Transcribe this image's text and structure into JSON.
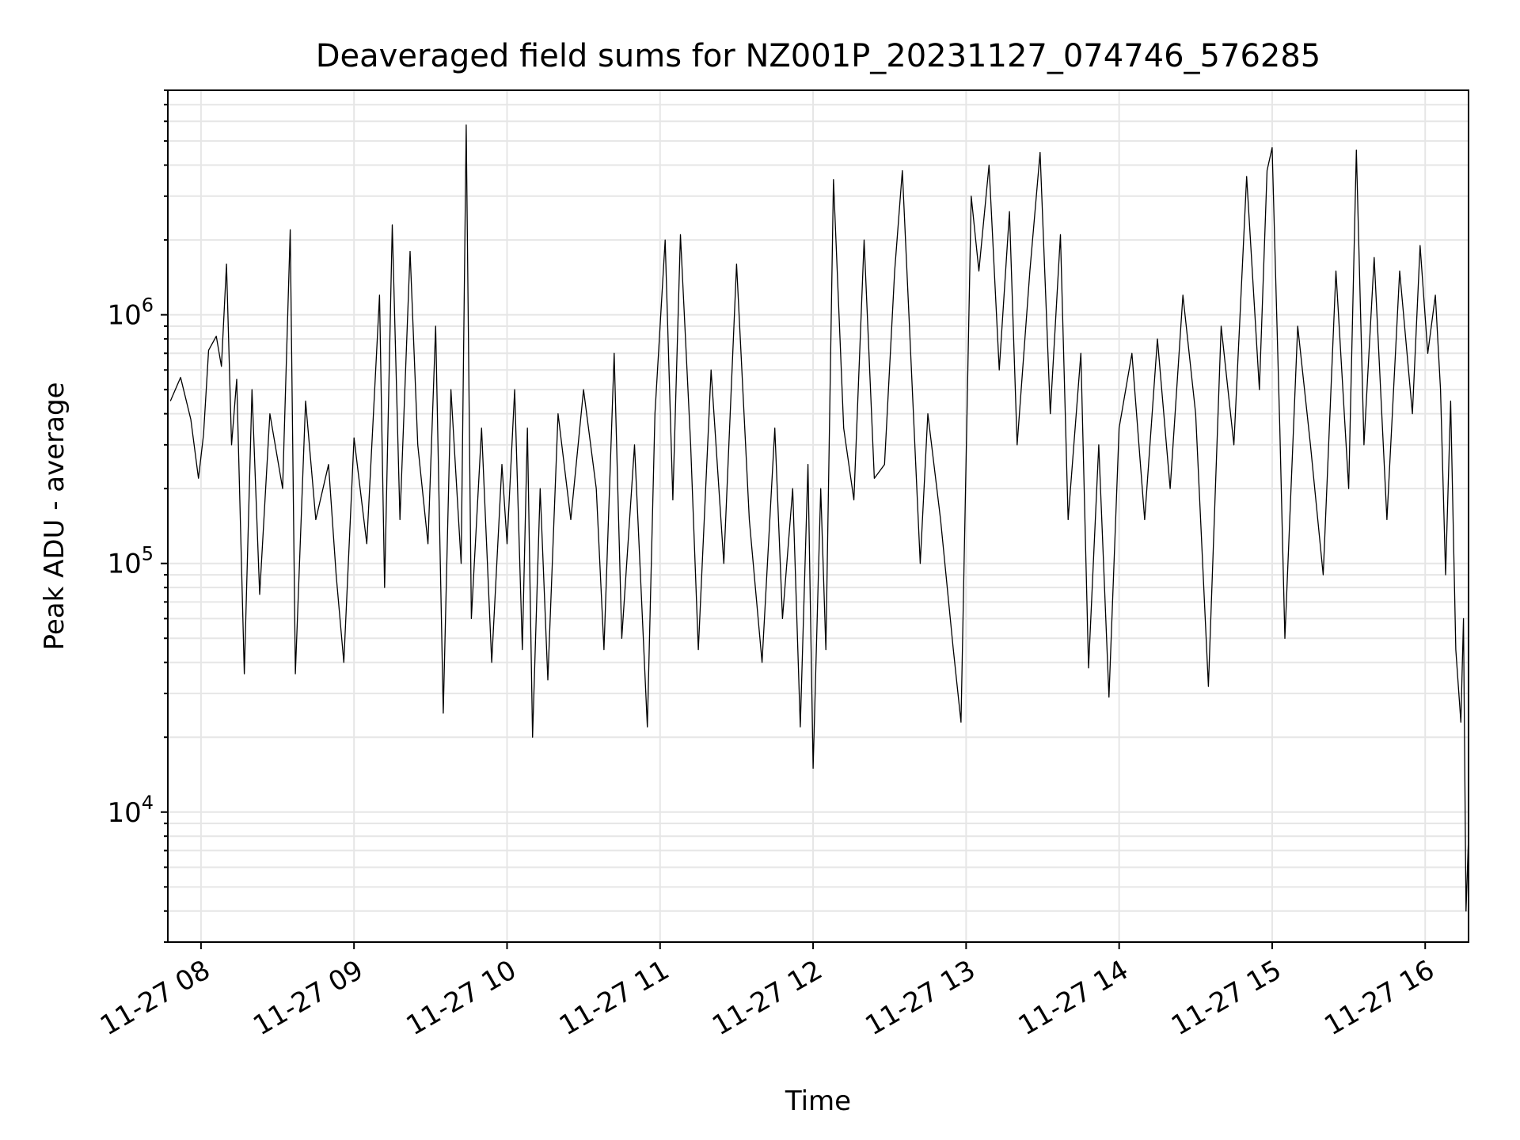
{
  "chart_data": {
    "type": "line",
    "title": "Deaveraged field sums for NZ001P_20231127_074746_576285",
    "xlabel": "Time",
    "ylabel": "Peak ADU - average",
    "x_ticks": [
      "11-27 08",
      "11-27 09",
      "11-27 10",
      "11-27 11",
      "11-27 12",
      "11-27 13",
      "11-27 14",
      "11-27 15",
      "11-27 16"
    ],
    "y_ticks": [
      {
        "base": "10",
        "exp": "4",
        "value": 10000
      },
      {
        "base": "10",
        "exp": "5",
        "value": 100000
      },
      {
        "base": "10",
        "exp": "6",
        "value": 1000000
      }
    ],
    "y_scale": "log",
    "x_range": [
      "2023-11-27 07:47",
      "2023-11-27 16:17"
    ],
    "y_range": [
      3000,
      8000000
    ],
    "grid": true,
    "line_color": "#000000",
    "grid_color": "#e6e6e6",
    "series": [
      {
        "points": [
          [
            "2023-11-27 07:48",
            450000
          ],
          [
            "2023-11-27 07:52",
            560000
          ],
          [
            "2023-11-27 07:56",
            380000
          ],
          [
            "2023-11-27 07:59",
            220000
          ],
          [
            "2023-11-27 08:01",
            330000
          ],
          [
            "2023-11-27 08:03",
            720000
          ],
          [
            "2023-11-27 08:06",
            820000
          ],
          [
            "2023-11-27 08:08",
            620000
          ],
          [
            "2023-11-27 08:10",
            1600000
          ],
          [
            "2023-11-27 08:12",
            300000
          ],
          [
            "2023-11-27 08:14",
            550000
          ],
          [
            "2023-11-27 08:17",
            36000
          ],
          [
            "2023-11-27 08:20",
            500000
          ],
          [
            "2023-11-27 08:23",
            75000
          ],
          [
            "2023-11-27 08:27",
            400000
          ],
          [
            "2023-11-27 08:32",
            200000
          ],
          [
            "2023-11-27 08:35",
            2200000
          ],
          [
            "2023-11-27 08:37",
            36000
          ],
          [
            "2023-11-27 08:41",
            450000
          ],
          [
            "2023-11-27 08:45",
            150000
          ],
          [
            "2023-11-27 08:50",
            250000
          ],
          [
            "2023-11-27 08:53",
            90000
          ],
          [
            "2023-11-27 08:56",
            40000
          ],
          [
            "2023-11-27 09:00",
            320000
          ],
          [
            "2023-11-27 09:05",
            120000
          ],
          [
            "2023-11-27 09:10",
            1200000
          ],
          [
            "2023-11-27 09:12",
            80000
          ],
          [
            "2023-11-27 09:15",
            2300000
          ],
          [
            "2023-11-27 09:18",
            150000
          ],
          [
            "2023-11-27 09:22",
            1800000
          ],
          [
            "2023-11-27 09:25",
            300000
          ],
          [
            "2023-11-27 09:29",
            120000
          ],
          [
            "2023-11-27 09:32",
            900000
          ],
          [
            "2023-11-27 09:35",
            25000
          ],
          [
            "2023-11-27 09:38",
            500000
          ],
          [
            "2023-11-27 09:42",
            100000
          ],
          [
            "2023-11-27 09:44",
            5800000
          ],
          [
            "2023-11-27 09:46",
            60000
          ],
          [
            "2023-11-27 09:50",
            350000
          ],
          [
            "2023-11-27 09:54",
            40000
          ],
          [
            "2023-11-27 09:58",
            250000
          ],
          [
            "2023-11-27 10:00",
            120000
          ],
          [
            "2023-11-27 10:03",
            500000
          ],
          [
            "2023-11-27 10:06",
            45000
          ],
          [
            "2023-11-27 10:08",
            350000
          ],
          [
            "2023-11-27 10:10",
            20000
          ],
          [
            "2023-11-27 10:13",
            200000
          ],
          [
            "2023-11-27 10:16",
            34000
          ],
          [
            "2023-11-27 10:20",
            400000
          ],
          [
            "2023-11-27 10:25",
            150000
          ],
          [
            "2023-11-27 10:30",
            500000
          ],
          [
            "2023-11-27 10:35",
            200000
          ],
          [
            "2023-11-27 10:38",
            45000
          ],
          [
            "2023-11-27 10:42",
            700000
          ],
          [
            "2023-11-27 10:45",
            50000
          ],
          [
            "2023-11-27 10:50",
            300000
          ],
          [
            "2023-11-27 10:55",
            22000
          ],
          [
            "2023-11-27 10:58",
            400000
          ],
          [
            "2023-11-27 11:02",
            2000000
          ],
          [
            "2023-11-27 11:05",
            180000
          ],
          [
            "2023-11-27 11:08",
            2100000
          ],
          [
            "2023-11-27 11:12",
            300000
          ],
          [
            "2023-11-27 11:15",
            45000
          ],
          [
            "2023-11-27 11:20",
            600000
          ],
          [
            "2023-11-27 11:25",
            100000
          ],
          [
            "2023-11-27 11:30",
            1600000
          ],
          [
            "2023-11-27 11:35",
            150000
          ],
          [
            "2023-11-27 11:40",
            40000
          ],
          [
            "2023-11-27 11:45",
            350000
          ],
          [
            "2023-11-27 11:48",
            60000
          ],
          [
            "2023-11-27 11:52",
            200000
          ],
          [
            "2023-11-27 11:55",
            22000
          ],
          [
            "2023-11-27 11:58",
            250000
          ],
          [
            "2023-11-27 12:00",
            15000
          ],
          [
            "2023-11-27 12:03",
            200000
          ],
          [
            "2023-11-27 12:05",
            45000
          ],
          [
            "2023-11-27 12:08",
            3500000
          ],
          [
            "2023-11-27 12:12",
            350000
          ],
          [
            "2023-11-27 12:16",
            180000
          ],
          [
            "2023-11-27 12:20",
            2000000
          ],
          [
            "2023-11-27 12:24",
            220000
          ],
          [
            "2023-11-27 12:28",
            250000
          ],
          [
            "2023-11-27 12:32",
            1500000
          ],
          [
            "2023-11-27 12:35",
            3800000
          ],
          [
            "2023-11-27 12:38",
            800000
          ],
          [
            "2023-11-27 12:42",
            100000
          ],
          [
            "2023-11-27 12:45",
            400000
          ],
          [
            "2023-11-27 12:50",
            150000
          ],
          [
            "2023-11-27 12:55",
            45000
          ],
          [
            "2023-11-27 12:58",
            23000
          ],
          [
            "2023-11-27 13:02",
            3000000
          ],
          [
            "2023-11-27 13:05",
            1500000
          ],
          [
            "2023-11-27 13:09",
            4000000
          ],
          [
            "2023-11-27 13:13",
            600000
          ],
          [
            "2023-11-27 13:17",
            2600000
          ],
          [
            "2023-11-27 13:20",
            300000
          ],
          [
            "2023-11-27 13:25",
            1500000
          ],
          [
            "2023-11-27 13:29",
            4500000
          ],
          [
            "2023-11-27 13:33",
            400000
          ],
          [
            "2023-11-27 13:37",
            2100000
          ],
          [
            "2023-11-27 13:40",
            150000
          ],
          [
            "2023-11-27 13:45",
            700000
          ],
          [
            "2023-11-27 13:48",
            38000
          ],
          [
            "2023-11-27 13:52",
            300000
          ],
          [
            "2023-11-27 13:56",
            29000
          ],
          [
            "2023-11-27 14:00",
            350000
          ],
          [
            "2023-11-27 14:05",
            700000
          ],
          [
            "2023-11-27 14:10",
            150000
          ],
          [
            "2023-11-27 14:15",
            800000
          ],
          [
            "2023-11-27 14:20",
            200000
          ],
          [
            "2023-11-27 14:25",
            1200000
          ],
          [
            "2023-11-27 14:30",
            400000
          ],
          [
            "2023-11-27 14:35",
            32000
          ],
          [
            "2023-11-27 14:40",
            900000
          ],
          [
            "2023-11-27 14:45",
            300000
          ],
          [
            "2023-11-27 14:50",
            3600000
          ],
          [
            "2023-11-27 14:55",
            500000
          ],
          [
            "2023-11-27 14:58",
            3800000
          ],
          [
            "2023-11-27 15:00",
            4700000
          ],
          [
            "2023-11-27 15:03",
            350000
          ],
          [
            "2023-11-27 15:05",
            50000
          ],
          [
            "2023-11-27 15:10",
            900000
          ],
          [
            "2023-11-27 15:15",
            300000
          ],
          [
            "2023-11-27 15:20",
            90000
          ],
          [
            "2023-11-27 15:25",
            1500000
          ],
          [
            "2023-11-27 15:30",
            200000
          ],
          [
            "2023-11-27 15:33",
            4600000
          ],
          [
            "2023-11-27 15:36",
            300000
          ],
          [
            "2023-11-27 15:40",
            1700000
          ],
          [
            "2023-11-27 15:45",
            150000
          ],
          [
            "2023-11-27 15:50",
            1500000
          ],
          [
            "2023-11-27 15:55",
            400000
          ],
          [
            "2023-11-27 15:58",
            1900000
          ],
          [
            "2023-11-27 16:01",
            700000
          ],
          [
            "2023-11-27 16:04",
            1200000
          ],
          [
            "2023-11-27 16:06",
            500000
          ],
          [
            "2023-11-27 16:08",
            90000
          ],
          [
            "2023-11-27 16:10",
            450000
          ],
          [
            "2023-11-27 16:12",
            45000
          ],
          [
            "2023-11-27 16:14",
            23000
          ],
          [
            "2023-11-27 16:15",
            60000
          ],
          [
            "2023-11-27 16:16",
            4000
          ],
          [
            "2023-11-27 16:17",
            8000
          ]
        ]
      }
    ]
  }
}
